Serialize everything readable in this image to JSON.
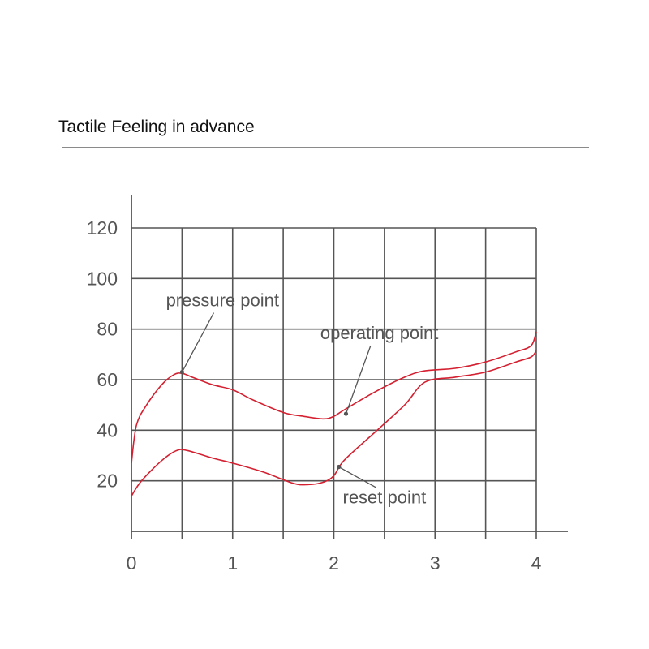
{
  "page_title": "Tactile Feeling in advance",
  "chart_data": {
    "type": "line",
    "title": "",
    "xlabel": "",
    "ylabel": "",
    "xlim": [
      0,
      4
    ],
    "ylim": [
      0,
      120
    ],
    "x_ticks": [
      0,
      1,
      2,
      3,
      4
    ],
    "x_tick_labels": [
      "0",
      "1",
      "2",
      "3",
      "4"
    ],
    "y_ticks": [
      20,
      40,
      60,
      80,
      100,
      120
    ],
    "y_tick_labels": [
      "20",
      "40",
      "60",
      "80",
      "100",
      "120"
    ],
    "grid": true,
    "grid_step_x": 0.5,
    "grid_step_y": 20,
    "line_color": "#d42030",
    "grid_color": "#555555",
    "text_color": "#555555",
    "series": [
      {
        "x": [
          0,
          0.05,
          0.15,
          0.3,
          0.42,
          0.5,
          0.6,
          0.8,
          1.0,
          1.2,
          1.5,
          1.7,
          1.9,
          2.0,
          2.1,
          2.4,
          2.7,
          2.9,
          3.2,
          3.5,
          3.8,
          3.95,
          4.0
        ],
        "y": [
          27,
          42,
          50,
          58,
          62,
          62.5,
          61,
          58,
          56,
          52,
          47,
          45.5,
          44.5,
          45.5,
          48,
          55,
          61,
          63.5,
          64.5,
          67,
          71,
          73.5,
          79
        ]
      },
      {
        "x": [
          0,
          0.1,
          0.3,
          0.45,
          0.55,
          0.8,
          1.0,
          1.3,
          1.6,
          1.75,
          1.9,
          2.0,
          2.1,
          2.4,
          2.7,
          2.9,
          3.2,
          3.5,
          3.8,
          3.95,
          4.0
        ],
        "y": [
          14,
          20,
          28,
          32,
          32,
          29,
          27,
          23.5,
          19,
          18.5,
          19.5,
          22,
          28,
          39,
          50,
          59,
          61,
          63,
          67,
          69,
          71.5
        ]
      }
    ],
    "annotations": [
      {
        "text": "pressure point",
        "x": 0.5,
        "y": 63,
        "label_x": 0.9,
        "label_y": 89
      },
      {
        "text": "operating point",
        "x": 2.12,
        "y": 46.5,
        "label_x": 2.45,
        "label_y": 76
      },
      {
        "text": "reset point",
        "x": 2.05,
        "y": 25.5,
        "label_x": 2.5,
        "label_y": 11
      }
    ]
  }
}
